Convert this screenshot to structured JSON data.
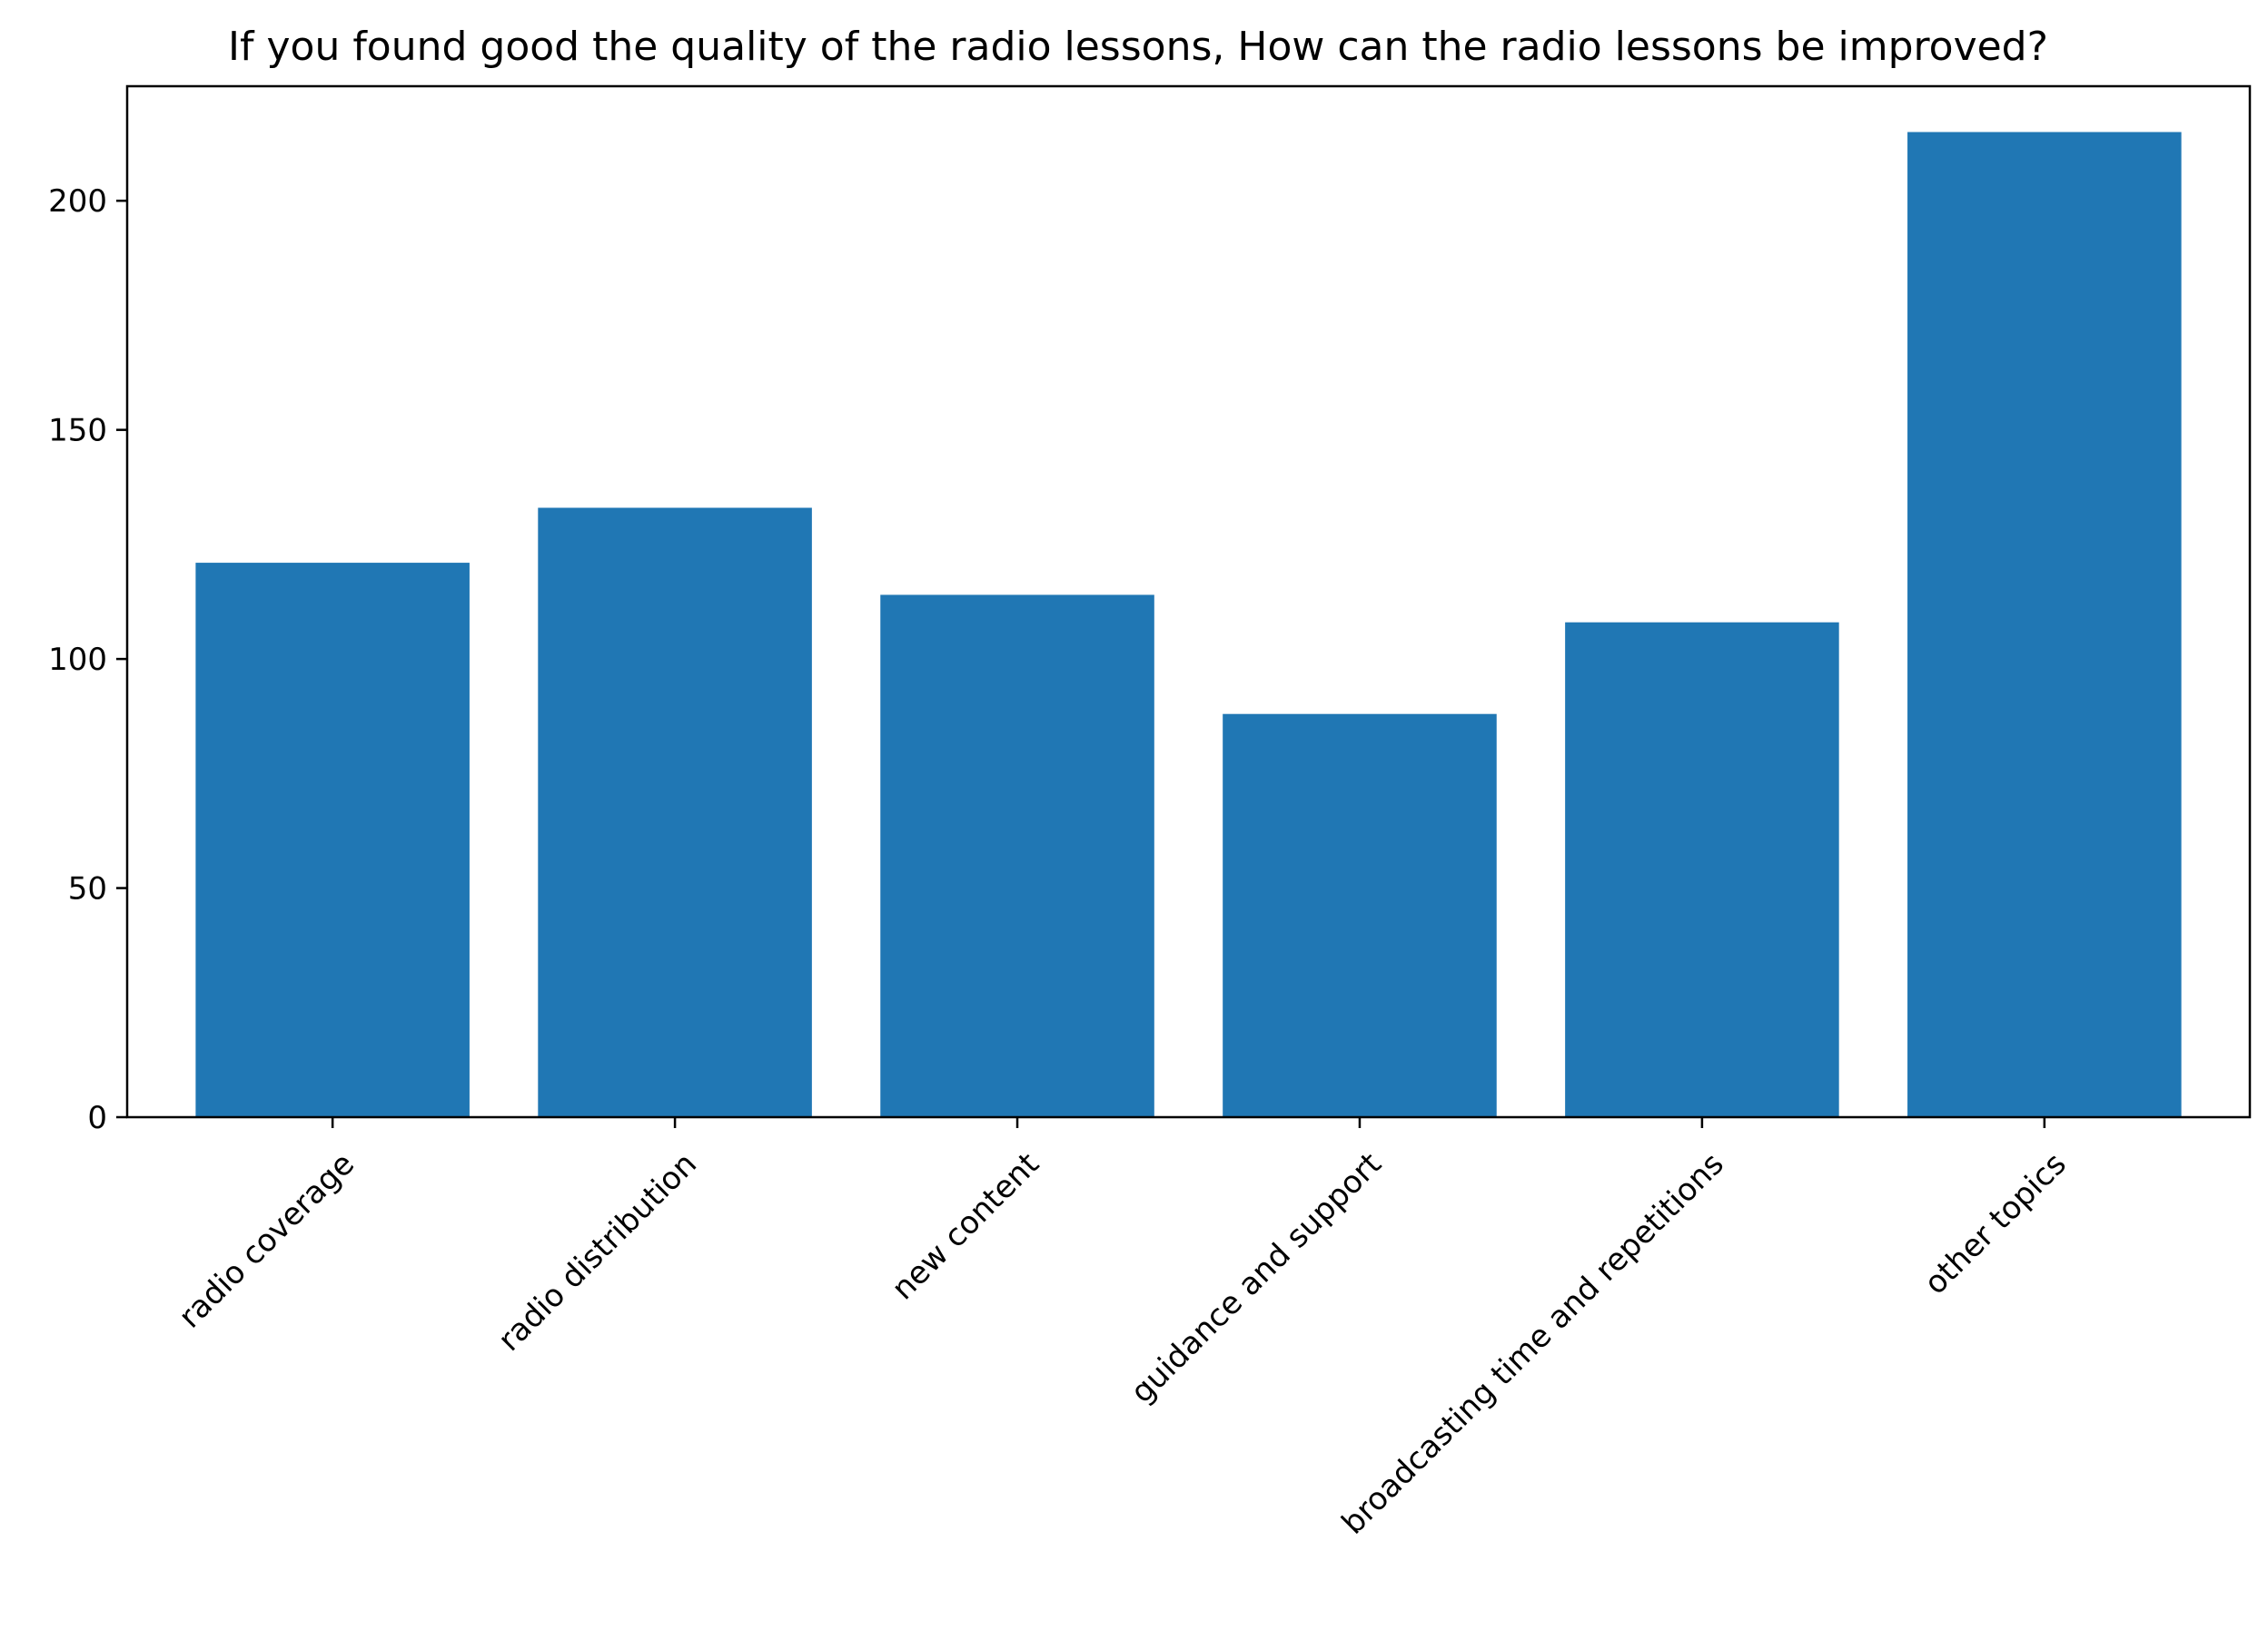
{
  "chart_data": {
    "type": "bar",
    "title": "If you found good the quality of the radio lessons, How can the radio lessons be improved?",
    "xlabel": "",
    "ylabel": "",
    "categories": [
      "radio coverage",
      "radio distribution",
      "new content",
      "guidance and support",
      "broadcasting time and repetitions",
      "other topics"
    ],
    "values": [
      121,
      133,
      114,
      88,
      108,
      215
    ],
    "ylim": [
      0,
      225
    ],
    "yticks": [
      0,
      50,
      100,
      150,
      200
    ],
    "grid": false,
    "bar_color": "#2077b4"
  }
}
